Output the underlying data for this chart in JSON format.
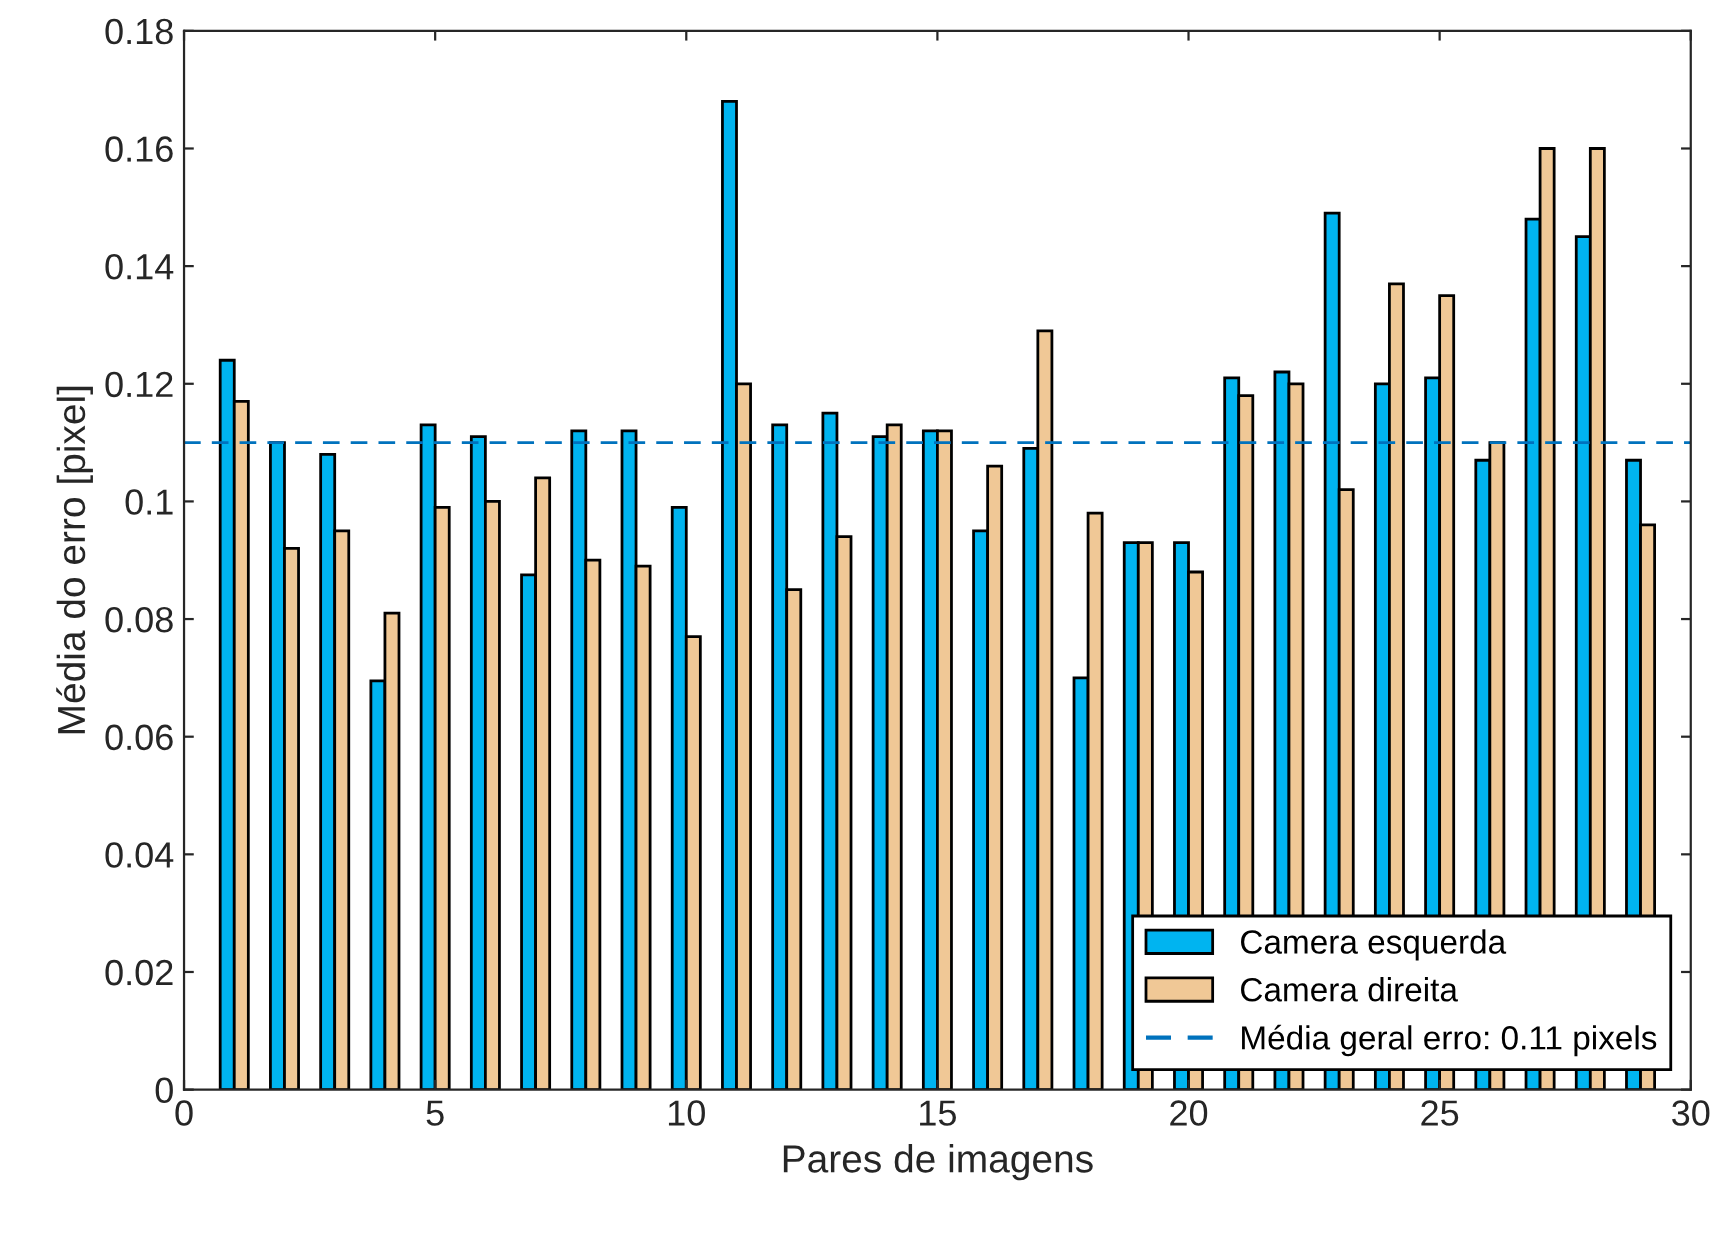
{
  "chart_data": {
    "type": "bar",
    "xlabel": "Pares de imagens",
    "ylabel": "Média do erro [pixel]",
    "x": [
      1,
      2,
      3,
      4,
      5,
      6,
      7,
      8,
      9,
      10,
      11,
      12,
      13,
      14,
      15,
      16,
      17,
      18,
      19,
      20,
      21,
      22,
      23,
      24,
      25,
      26,
      27,
      28,
      29
    ],
    "series": [
      {
        "name": "Camera esquerda",
        "color": "#00b4f0",
        "values": [
          0.124,
          0.11,
          0.108,
          0.0695,
          0.113,
          0.111,
          0.0875,
          0.112,
          0.112,
          0.099,
          0.168,
          0.113,
          0.115,
          0.111,
          0.112,
          0.095,
          0.109,
          0.07,
          0.093,
          0.093,
          0.121,
          0.122,
          0.149,
          0.12,
          0.121,
          0.107,
          0.148,
          0.145,
          0.107
        ]
      },
      {
        "name": "Camera direita",
        "color": "#f0c896",
        "values": [
          0.117,
          0.092,
          0.095,
          0.081,
          0.099,
          0.1,
          0.104,
          0.09,
          0.089,
          0.077,
          0.12,
          0.085,
          0.094,
          0.113,
          0.112,
          0.106,
          0.129,
          0.098,
          0.093,
          0.088,
          0.118,
          0.12,
          0.102,
          0.137,
          0.135,
          0.11,
          0.16,
          0.16,
          0.096
        ]
      }
    ],
    "ref_lines": [
      {
        "axis": "y",
        "value": 0.11,
        "label": "Média geral erro: 0.11 pixels",
        "color": "#0072bd",
        "line_style": "dashed"
      }
    ],
    "xlim": [
      0,
      30
    ],
    "xticks": [
      0,
      5,
      10,
      15,
      20,
      25,
      30
    ],
    "ylim": [
      0,
      0.18
    ],
    "yticks": [
      0,
      0.02,
      0.04,
      0.06,
      0.08,
      0.1,
      0.12,
      0.14,
      0.16,
      0.18
    ],
    "grid": false,
    "legend": "bottom right"
  }
}
